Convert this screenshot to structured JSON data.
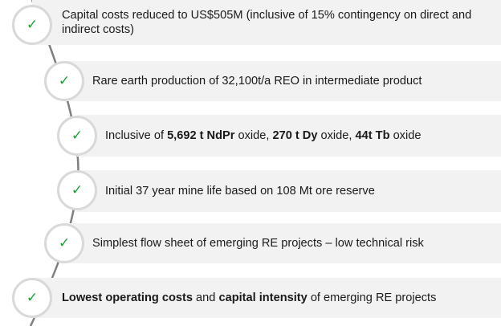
{
  "items": [
    {
      "icon": "check-icon",
      "parts": [
        {
          "t": "Capital costs reduced to US$505M (inclusive of 15% contingency on direct and indirect costs)",
          "b": false
        }
      ]
    },
    {
      "icon": "check-icon",
      "parts": [
        {
          "t": "Rare earth production of 32,100t/a REO in intermediate product",
          "b": false
        }
      ]
    },
    {
      "icon": "check-icon",
      "parts": [
        {
          "t": "Inclusive of ",
          "b": false
        },
        {
          "t": "5,692 t NdPr",
          "b": true
        },
        {
          "t": " oxide, ",
          "b": false
        },
        {
          "t": "270 t Dy",
          "b": true
        },
        {
          "t": " oxide, ",
          "b": false
        },
        {
          "t": "44t Tb",
          "b": true
        },
        {
          "t": " oxide",
          "b": false
        }
      ]
    },
    {
      "icon": "check-icon",
      "parts": [
        {
          "t": "Initial 37 year mine life based on 108 Mt ore reserve",
          "b": false
        }
      ]
    },
    {
      "icon": "check-icon",
      "parts": [
        {
          "t": "Simplest flow sheet of emerging RE projects – low technical risk",
          "b": false
        }
      ]
    },
    {
      "icon": "check-icon",
      "parts": [
        {
          "t": "Lowest operating costs",
          "b": true
        },
        {
          "t": " and ",
          "b": false
        },
        {
          "t": "capital intensity",
          "b": true
        },
        {
          "t": " of emerging RE projects",
          "b": false
        }
      ]
    }
  ],
  "colors": {
    "bar": "#f2f2f2",
    "check": "#1f9e3a",
    "ring": "#d9d9d9",
    "curve": "#7f7f7f"
  }
}
